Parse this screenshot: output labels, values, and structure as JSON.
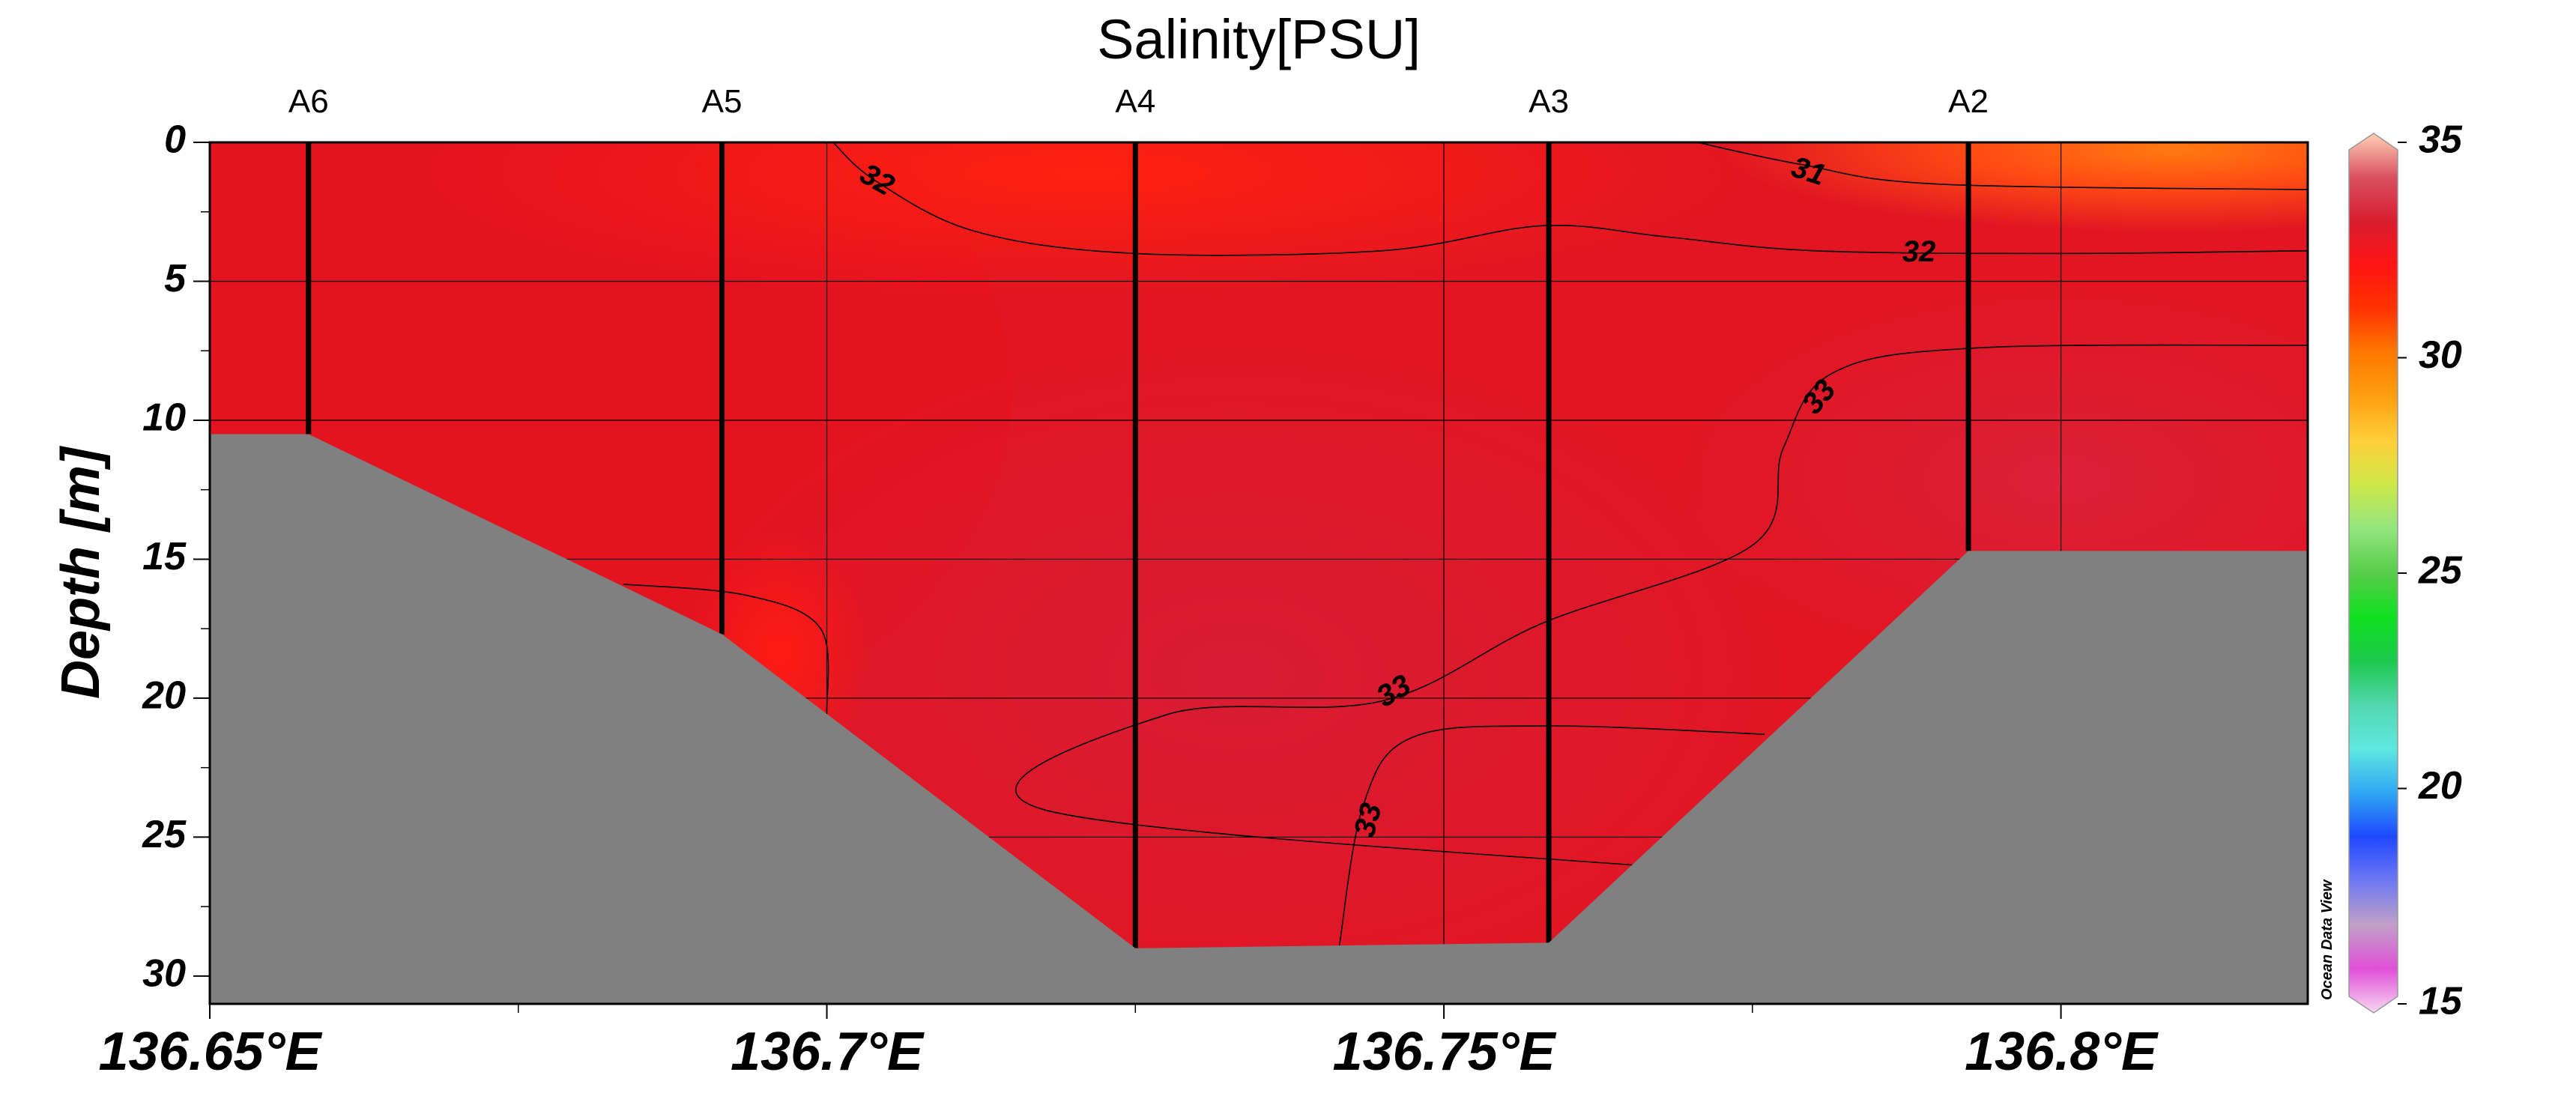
{
  "chart_data": {
    "type": "heatmap",
    "subtype": "ocean-section",
    "title": "Salinity[PSU]",
    "xlabel": "",
    "ylabel": "Depth [m]",
    "xlim": [
      136.65,
      136.82
    ],
    "ylim": [
      31,
      0
    ],
    "y_inverted": true,
    "grid": true,
    "x_ticks": [
      136.65,
      136.7,
      136.75,
      136.8
    ],
    "x_tick_labels": [
      "136.65°E",
      "136.7°E",
      "136.75°E",
      "136.8°E"
    ],
    "x_minor_ticks": [
      136.675,
      136.725,
      136.775
    ],
    "y_ticks": [
      0,
      5,
      10,
      15,
      20,
      25,
      30
    ],
    "y_tick_labels": [
      "0",
      "5",
      "10",
      "15",
      "20",
      "25",
      "30"
    ],
    "y_minor_ticks": [
      2.5,
      7.5,
      12.5,
      17.5,
      22.5,
      27.5
    ],
    "stations": [
      {
        "name": "A6",
        "lon": 136.658,
        "max_depth": 10.5
      },
      {
        "name": "A5",
        "lon": 136.6915,
        "max_depth": 17.7
      },
      {
        "name": "A4",
        "lon": 136.725,
        "max_depth": 29
      },
      {
        "name": "A3",
        "lon": 136.7585,
        "max_depth": 28.8
      },
      {
        "name": "A2",
        "lon": 136.7925,
        "max_depth": 14.7
      }
    ],
    "bottom_profile": [
      {
        "lon": 136.65,
        "depth": 10.5
      },
      {
        "lon": 136.658,
        "depth": 10.5
      },
      {
        "lon": 136.6915,
        "depth": 17.7
      },
      {
        "lon": 136.725,
        "depth": 29
      },
      {
        "lon": 136.7585,
        "depth": 28.8
      },
      {
        "lon": 136.7925,
        "depth": 14.7
      },
      {
        "lon": 136.82,
        "depth": 14.7
      }
    ],
    "contours": [
      {
        "level": 31,
        "label": "31",
        "points": [
          [
            136.7705,
            0
          ],
          [
            136.779,
            0.8
          ],
          [
            136.79,
            1.5
          ],
          [
            136.82,
            1.7
          ]
        ],
        "label_at": [
          136.7795,
          1.1
        ]
      },
      {
        "level": 32,
        "label": "32",
        "points": [
          [
            136.7005,
            0
          ],
          [
            136.704,
            1.4
          ],
          [
            136.712,
            3.2
          ],
          [
            136.725,
            4
          ],
          [
            136.745,
            3.9
          ],
          [
            136.758,
            3.0
          ],
          [
            136.768,
            3.4
          ],
          [
            136.78,
            3.9
          ],
          [
            136.8,
            4
          ],
          [
            136.82,
            3.9
          ]
        ],
        "label_at": [
          136.704,
          1.4
        ],
        "label2_at": [
          136.7885,
          4.0
        ]
      },
      {
        "level": 32,
        "label": "",
        "points": [
          [
            136.6835,
            15.9
          ],
          [
            136.6935,
            16.3
          ],
          [
            136.6995,
            17.5
          ],
          [
            136.7,
            20.5
          ]
        ]
      },
      {
        "level": 33,
        "label": "33",
        "points": [
          [
            136.771,
            26.2
          ],
          [
            136.7175,
            24.0
          ],
          [
            136.7275,
            20.6
          ],
          [
            136.745,
            20.1
          ],
          [
            136.758,
            17.3
          ],
          [
            136.775,
            14.5
          ],
          [
            136.7775,
            11.0
          ],
          [
            136.7815,
            8.3
          ],
          [
            136.793,
            7.4
          ],
          [
            136.82,
            7.3
          ]
        ],
        "label_at": [
          136.7805,
          9.2
        ],
        "label2_at": [
          136.746,
          19.8
        ]
      },
      {
        "level": 33,
        "label": "33",
        "points": [
          [
            136.7415,
            29
          ],
          [
            136.7435,
            23.8
          ],
          [
            136.7475,
            21.4
          ],
          [
            136.7585,
            21.0
          ],
          [
            136.776,
            21.3
          ]
        ],
        "label_at": [
          136.744,
          24.4
        ]
      }
    ],
    "fill": {
      "description_colors": {
        "surface_east": "#ff4a14",
        "surface_center": "#ff1810",
        "west": "#e31522",
        "deep": "#d91a30",
        "east_mid": "#dc1d36",
        "bottom_pocket": "#ef1a14"
      }
    },
    "land_color": "#808080",
    "colorbar": {
      "min": 15,
      "max": 35,
      "ticks": [
        15,
        20,
        25,
        30,
        35
      ],
      "tick_labels": [
        "15",
        "20",
        "25",
        "30",
        "35"
      ],
      "stops": [
        {
          "value": 15,
          "color": "#f7d7f2"
        },
        {
          "value": 16,
          "color": "#e050d8"
        },
        {
          "value": 17,
          "color": "#c1a0c6"
        },
        {
          "value": 18,
          "color": "#6f78f2"
        },
        {
          "value": 19,
          "color": "#1f48ff"
        },
        {
          "value": 20,
          "color": "#2fa7f2"
        },
        {
          "value": 21,
          "color": "#5fe8e0"
        },
        {
          "value": 22,
          "color": "#53d7b0"
        },
        {
          "value": 23,
          "color": "#1cc94d"
        },
        {
          "value": 24,
          "color": "#10e020"
        },
        {
          "value": 25,
          "color": "#58cc4a"
        },
        {
          "value": 26,
          "color": "#92e57f"
        },
        {
          "value": 27,
          "color": "#cde84a"
        },
        {
          "value": 28,
          "color": "#ffd03a"
        },
        {
          "value": 29,
          "color": "#ff9f12"
        },
        {
          "value": 30,
          "color": "#ff7a00"
        },
        {
          "value": 31,
          "color": "#ff3300"
        },
        {
          "value": 32,
          "color": "#ff1414"
        },
        {
          "value": 33,
          "color": "#d91d30"
        },
        {
          "value": 34,
          "color": "#d95060"
        },
        {
          "value": 35,
          "color": "#ffd0b5"
        }
      ]
    }
  },
  "watermark": "Ocean Data View"
}
